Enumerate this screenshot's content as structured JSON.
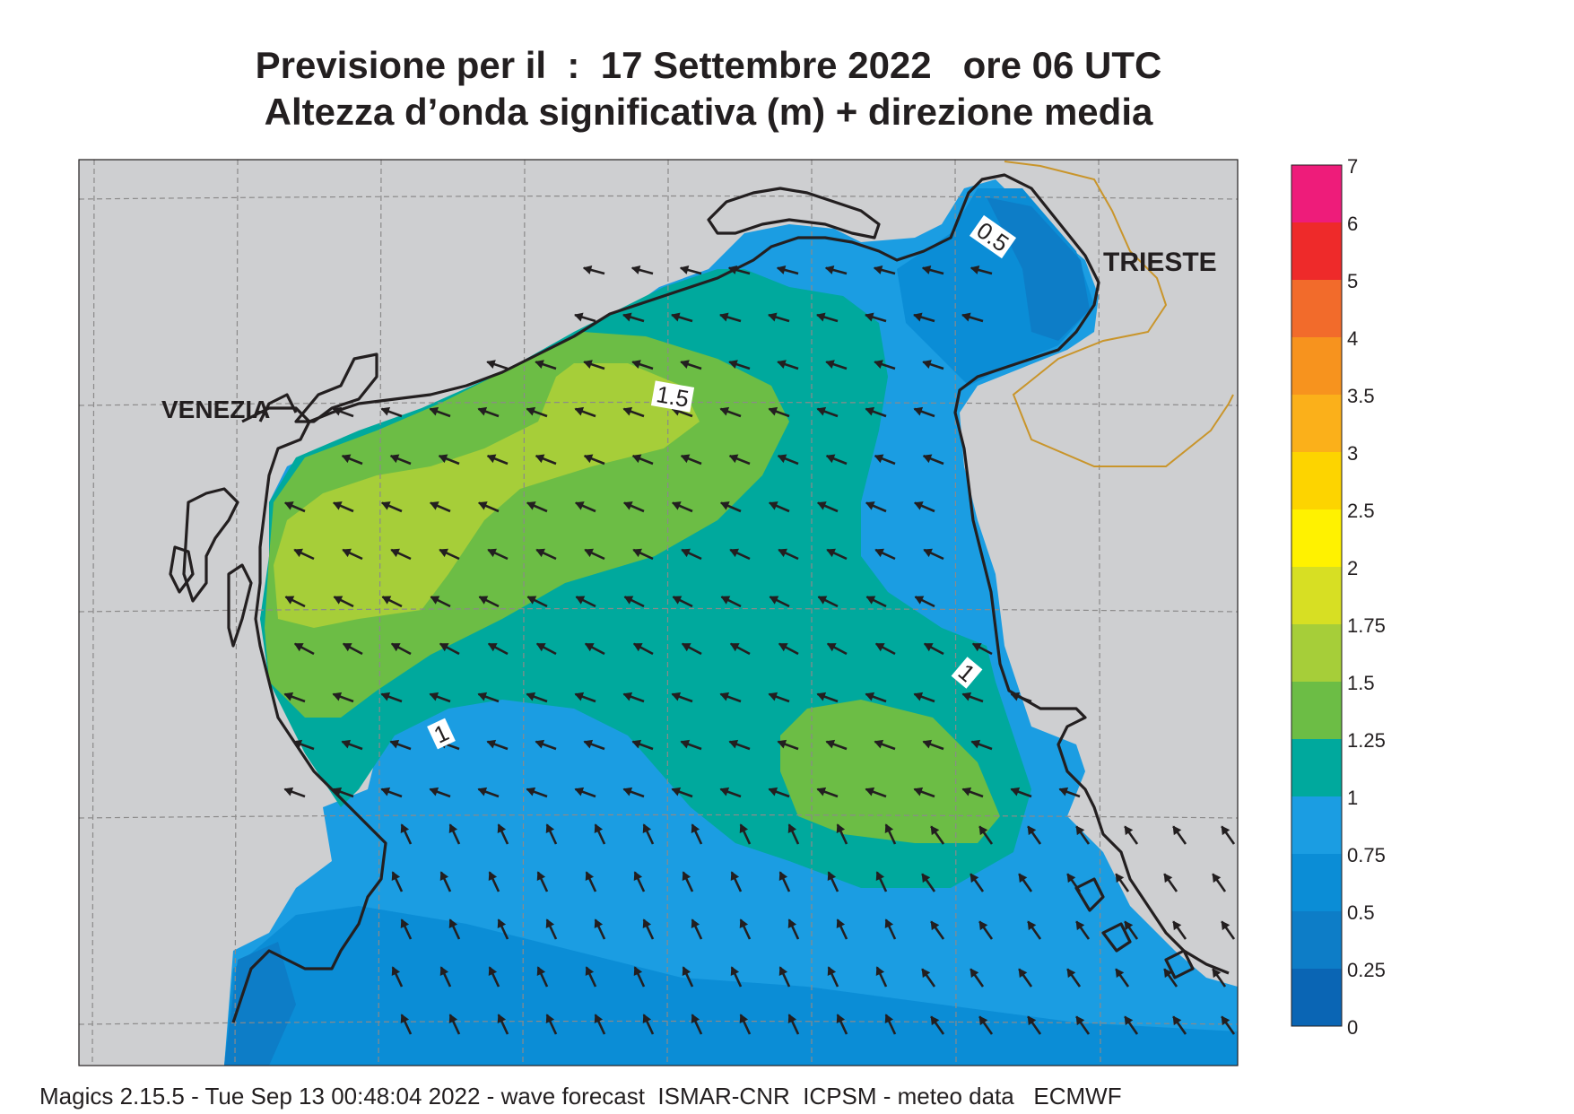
{
  "header": {
    "line1": "Previsione per il  :  17 Settembre 2022   ore 06 UTC",
    "line2": "Altezza d’onda significativa (m) + direzione media"
  },
  "cities": {
    "venezia": "VENEZIA",
    "trieste": "TRIESTE"
  },
  "contour_labels": [
    "0.5",
    "1.5",
    "1",
    "1"
  ],
  "colorbar": {
    "labels": [
      "7",
      "6",
      "5",
      "4",
      "3.5",
      "3",
      "2.5",
      "2",
      "1.75",
      "1.5",
      "1.25",
      "1",
      "0.75",
      "0.5",
      "0.25",
      "0"
    ],
    "colors": [
      "#ee1c7a",
      "#ee2a2a",
      "#f26b2b",
      "#f7931e",
      "#fbb01a",
      "#fdd400",
      "#fff200",
      "#d7df23",
      "#a6ce39",
      "#6cbd45",
      "#00a99d",
      "#1b9de2",
      "#0b8dd6",
      "#0d7dc7",
      "#0a65b4"
    ]
  },
  "colors": {
    "land": "#cecfd1",
    "sea": "#0b8dd6",
    "coast": "#231f20",
    "border": "#c9952b",
    "arrow": "#231f20",
    "grid": "#8b8a8a"
  },
  "footer": "Magics 2.15.5 - Tue Sep 13 00:48:04 2022 - wave forecast  ISMAR-CNR  ICPSM - meteo data   ECMWF"
}
